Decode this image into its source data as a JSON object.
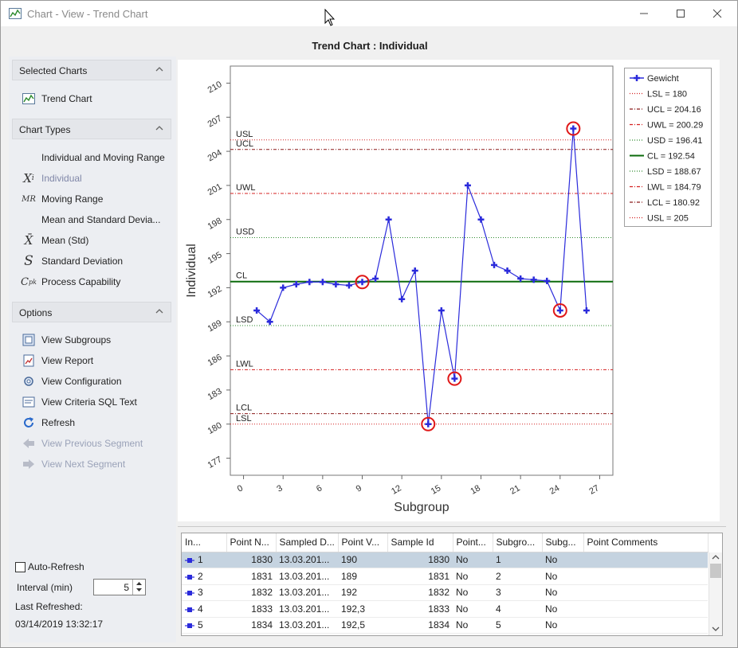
{
  "window": {
    "title": "Chart - View - Trend Chart"
  },
  "chart_title": "Trend Chart  :  Individual",
  "sidebar": {
    "selected_charts": {
      "header": "Selected Charts",
      "items": [
        {
          "label": "Trend Chart",
          "icon": "trend-chart-icon"
        }
      ]
    },
    "chart_types": {
      "header": "Chart Types",
      "items": [
        {
          "label": "Individual and Moving Range",
          "icon": ""
        },
        {
          "label": "Individual",
          "icon": "xi-symbol-icon",
          "symbol_base": "X",
          "symbol_sub": "i"
        },
        {
          "label": "Moving Range",
          "icon": "mr-symbol-icon",
          "symbol": "MR"
        },
        {
          "label": "Mean and Standard Devia...",
          "icon": ""
        },
        {
          "label": "Mean (Std)",
          "icon": "xbar-symbol-icon",
          "symbol": "X̄"
        },
        {
          "label": "Standard Deviation",
          "icon": "s-symbol-icon",
          "symbol": "S"
        },
        {
          "label": "Process Capability",
          "icon": "cpk-symbol-icon",
          "symbol_base": "C",
          "symbol_sub": "pk"
        }
      ]
    },
    "options": {
      "header": "Options",
      "items": [
        {
          "label": "View Subgroups",
          "icon": "subgroups-icon"
        },
        {
          "label": "View Report",
          "icon": "report-icon"
        },
        {
          "label": "View Configuration",
          "icon": "configuration-icon"
        },
        {
          "label": "View Criteria SQL Text",
          "icon": "sql-text-icon"
        },
        {
          "label": "Refresh",
          "icon": "refresh-icon"
        },
        {
          "label": "View Previous Segment",
          "icon": "arrow-left-icon"
        },
        {
          "label": "View Next Segment",
          "icon": "arrow-right-icon"
        }
      ]
    },
    "auto_refresh_label": "Auto-Refresh",
    "interval_label": "Interval (min)",
    "interval_value": "5",
    "last_refreshed_label": "Last Refreshed:",
    "last_refreshed_value": "03/14/2019 13:32:17"
  },
  "chart_data": {
    "type": "line",
    "xlabel": "Subgroup",
    "ylabel": "Individual",
    "xlim": [
      -1,
      28
    ],
    "ylim": [
      175.5,
      211.5
    ],
    "xticks": [
      0,
      3,
      6,
      9,
      12,
      15,
      18,
      21,
      24,
      27
    ],
    "yticks": [
      177,
      180,
      183,
      186,
      189,
      192,
      195,
      198,
      201,
      204,
      207,
      210
    ],
    "grid": false,
    "legend_position": "right",
    "series": [
      {
        "name": "Gewicht",
        "color": "#2b2bdb",
        "x": [
          1,
          2,
          3,
          4,
          5,
          6,
          7,
          8,
          9,
          10,
          11,
          12,
          13,
          14,
          15,
          16,
          17,
          18,
          19,
          20,
          21,
          22,
          23,
          24,
          25,
          26
        ],
        "values": [
          190,
          189,
          192,
          192.3,
          192.5,
          192.5,
          192.3,
          192.2,
          192.5,
          192.8,
          198,
          191,
          193.5,
          180,
          190,
          184,
          201,
          198,
          194,
          193.5,
          192.8,
          192.7,
          192.6,
          190,
          206,
          190
        ],
        "flagged_x": [
          9,
          14,
          16,
          24,
          25
        ]
      }
    ],
    "control_lines": [
      {
        "short": "LSL",
        "legend": "LSL = 180",
        "value": 180,
        "color": "#d42020",
        "dash": "1,2"
      },
      {
        "short": "UCL",
        "legend": "UCL = 204.16",
        "value": 204.16,
        "color": "#8b1a1a",
        "dash": "4,2,1,2"
      },
      {
        "short": "UWL",
        "legend": "UWL = 200.29",
        "value": 200.29,
        "color": "#d42020",
        "dash": "4,2,1,2"
      },
      {
        "short": "USD",
        "legend": "USD = 196.41",
        "value": 196.41,
        "color": "#2e8b2e",
        "dash": "1,2"
      },
      {
        "short": "CL",
        "legend": "CL = 192.54",
        "value": 192.54,
        "color": "#0b6b0b",
        "dash": ""
      },
      {
        "short": "LSD",
        "legend": "LSD = 188.67",
        "value": 188.67,
        "color": "#2e8b2e",
        "dash": "1,2"
      },
      {
        "short": "LWL",
        "legend": "LWL = 184.79",
        "value": 184.79,
        "color": "#d42020",
        "dash": "4,2,1,2"
      },
      {
        "short": "LCL",
        "legend": "LCL = 180.92",
        "value": 180.92,
        "color": "#8b1a1a",
        "dash": "4,2,1,2"
      },
      {
        "short": "USL",
        "legend": "USL = 205",
        "value": 205,
        "color": "#d42020",
        "dash": "1,2"
      }
    ]
  },
  "grid": {
    "columns": [
      "In...",
      "Point N...",
      "Sampled D...",
      "Point V...",
      "Sample Id",
      "Point...",
      "Subgro...",
      "Subg...",
      "Point Comments"
    ],
    "rows": [
      {
        "index": "1",
        "point_no": "1830",
        "sampled": "13.03.201...",
        "value": "190",
        "sample_id": "1830",
        "point": "No",
        "subgroup": "1",
        "subg": "No",
        "comments": ""
      },
      {
        "index": "2",
        "point_no": "1831",
        "sampled": "13.03.201...",
        "value": "189",
        "sample_id": "1831",
        "point": "No",
        "subgroup": "2",
        "subg": "No",
        "comments": ""
      },
      {
        "index": "3",
        "point_no": "1832",
        "sampled": "13.03.201...",
        "value": "192",
        "sample_id": "1832",
        "point": "No",
        "subgroup": "3",
        "subg": "No",
        "comments": ""
      },
      {
        "index": "4",
        "point_no": "1833",
        "sampled": "13.03.201...",
        "value": "192,3",
        "sample_id": "1833",
        "point": "No",
        "subgroup": "4",
        "subg": "No",
        "comments": ""
      },
      {
        "index": "5",
        "point_no": "1834",
        "sampled": "13.03.201...",
        "value": "192,5",
        "sample_id": "1834",
        "point": "No",
        "subgroup": "5",
        "subg": "No",
        "comments": ""
      }
    ]
  }
}
